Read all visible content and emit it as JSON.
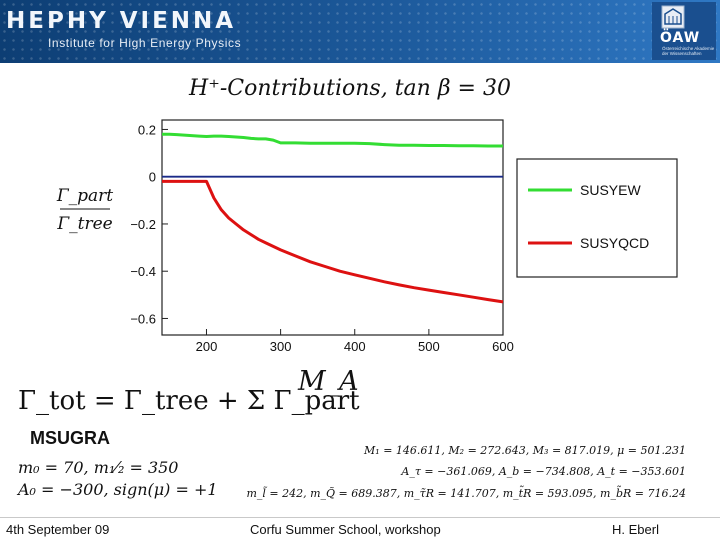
{
  "header": {
    "logo_main": "HEPHY VIENNA",
    "logo_sub": "Institute for High Energy Physics",
    "oaw_logo": "ÖAW",
    "oaw_sub": "Österreichische Akademie der Wissenschaften"
  },
  "colors": {
    "header_bg": "#1d5a9c",
    "susyew": "#33dd33",
    "susyqcd": "#dd1111",
    "zero_line": "#1a2a88"
  },
  "chart_data": {
    "type": "line",
    "title": "H⁺-Contributions, tan β = 30",
    "xlabel": "M_A",
    "ylabel_num": "Γ_part",
    "ylabel_den": "Γ_tree",
    "xlim": [
      140,
      600
    ],
    "ylim": [
      -0.67,
      0.24
    ],
    "xticks": [
      200,
      300,
      400,
      500,
      600
    ],
    "yticks": [
      0.2,
      0,
      -0.2,
      -0.4,
      -0.6
    ],
    "ytick_labels": [
      "0.2",
      "0",
      "−0.2",
      "−0.4",
      "−0.6"
    ],
    "grid": false,
    "legend_position": "right-outside",
    "reference_line_y": 0,
    "x": [
      140,
      150,
      160,
      170,
      180,
      190,
      200,
      210,
      220,
      230,
      240,
      250,
      260,
      270,
      280,
      290,
      300,
      320,
      340,
      360,
      380,
      400,
      420,
      440,
      460,
      480,
      500,
      520,
      540,
      560,
      580,
      600
    ],
    "series": [
      {
        "name": "SUSYEW",
        "color": "#33dd33",
        "values": [
          0.18,
          0.18,
          0.178,
          0.176,
          0.174,
          0.172,
          0.17,
          0.172,
          0.172,
          0.17,
          0.168,
          0.166,
          0.162,
          0.16,
          0.16,
          0.155,
          0.143,
          0.143,
          0.142,
          0.142,
          0.142,
          0.142,
          0.14,
          0.136,
          0.133,
          0.133,
          0.132,
          0.132,
          0.131,
          0.131,
          0.13,
          0.13
        ]
      },
      {
        "name": "SUSYQCD",
        "color": "#dd1111",
        "values": [
          -0.02,
          -0.02,
          -0.02,
          -0.02,
          -0.02,
          -0.02,
          -0.02,
          -0.09,
          -0.14,
          -0.175,
          -0.2,
          -0.225,
          -0.245,
          -0.265,
          -0.28,
          -0.295,
          -0.31,
          -0.335,
          -0.36,
          -0.38,
          -0.4,
          -0.415,
          -0.43,
          -0.445,
          -0.458,
          -0.47,
          -0.48,
          -0.49,
          -0.5,
          -0.51,
          -0.52,
          -0.53
        ]
      }
    ]
  },
  "formula": {
    "gamma_tot": "Γ_tot = Γ_tree + Σ Γ_part",
    "model": "MSUGRA",
    "params_line1": "m₀ = 70, m₁⁄₂ = 350",
    "params_line2": "A₀ = −300, sign(μ) = +1",
    "mass_line1": "M₁ = 146.611, M₂ = 272.643, M₃ = 817.019, μ = 501.231",
    "mass_line2": "A_τ = −361.069, A_b = −734.808, A_t = −353.601",
    "mass_line3": "m_l̃ = 242, m_Q̃ = 689.387, m_τ̃R = 141.707, m_t̃R = 593.095, m_b̃R = 716.24"
  },
  "footer": {
    "date": "4th September 09",
    "event": "Corfu Summer School, workshop",
    "author": "H. Eberl"
  }
}
